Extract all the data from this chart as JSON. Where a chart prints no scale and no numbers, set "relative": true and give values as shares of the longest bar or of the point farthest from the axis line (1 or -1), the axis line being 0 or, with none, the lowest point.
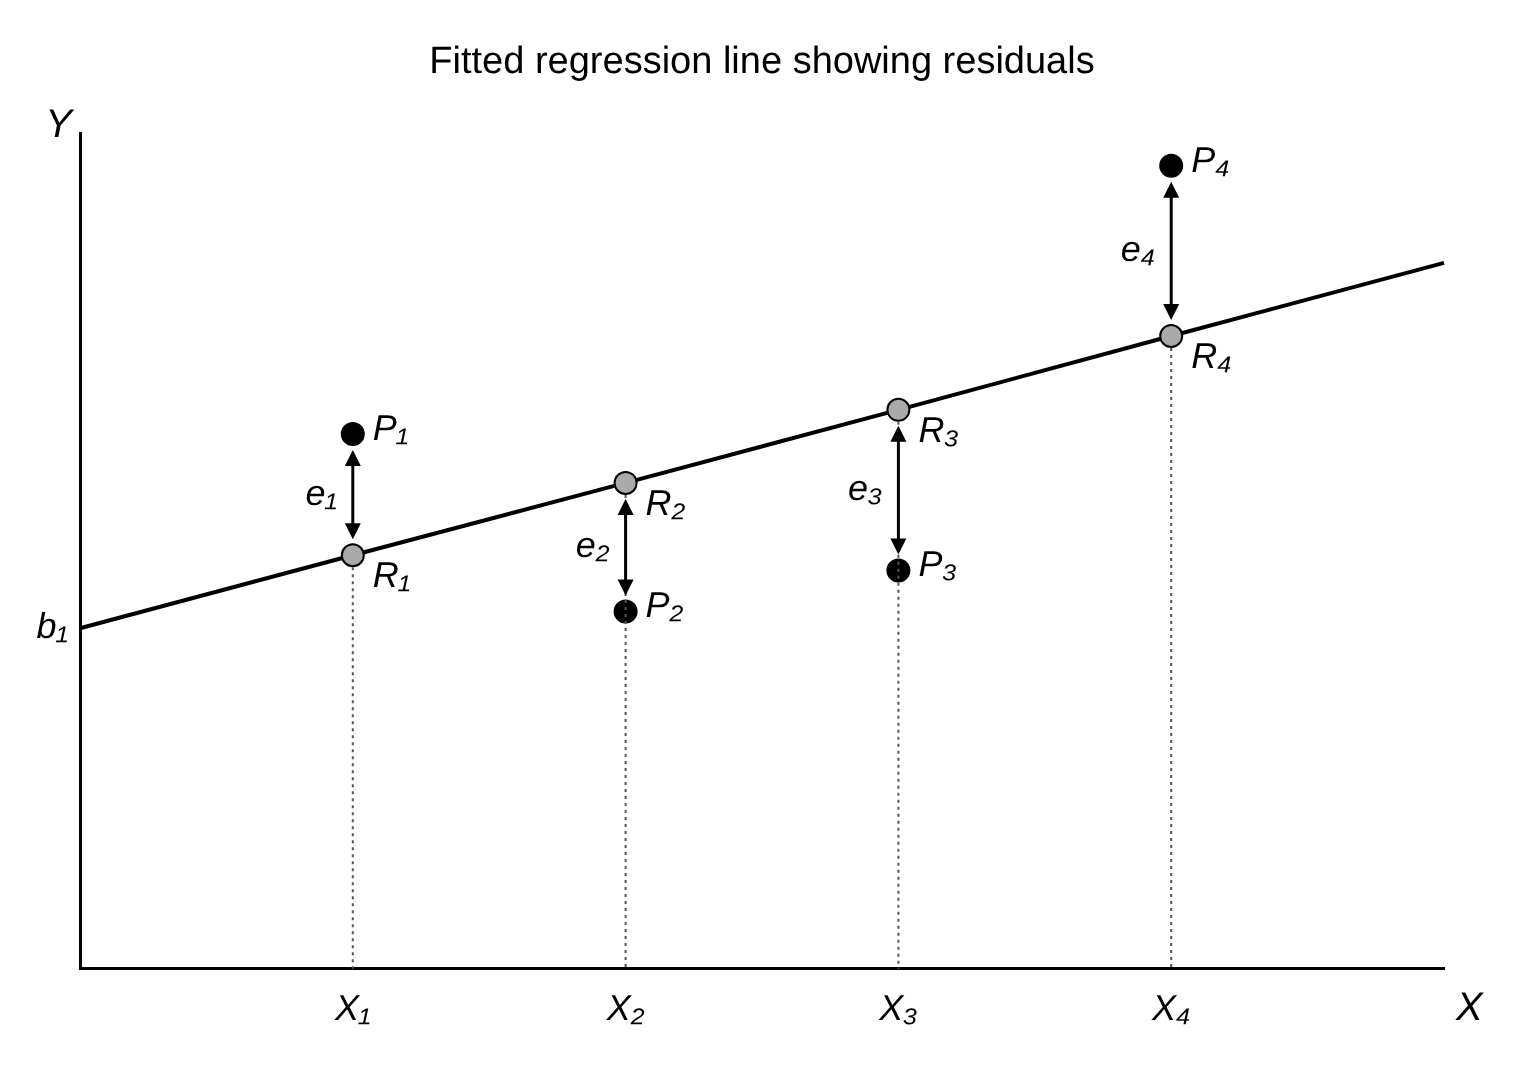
{
  "chart_data": {
    "type": "scatter",
    "title": "Fitted regression line showing residuals",
    "xlabel": "X",
    "ylabel": "Y",
    "relative": true,
    "categories": [
      null,
      "X₁",
      "X₂",
      "X₃",
      "X₄",
      null
    ],
    "series": [
      {
        "type": "line",
        "color": "#000000",
        "marker": "none",
        "values": [
          0.424,
          0.515,
          0.605,
          0.696,
          0.788,
          0.879
        ]
      },
      {
        "color": "#aaaaaa",
        "values": [
          null,
          0.515,
          0.605,
          0.696,
          0.788,
          null
        ]
      },
      {
        "color": "#000000",
        "values": [
          null,
          0.666,
          0.445,
          0.496,
          1,
          null
        ]
      }
    ],
    "marker": "circle",
    "grid": "x",
    "legend": false,
    "annotations": [
      "b₁",
      {
        "text": "P₁",
        "x": "X₁",
        "y": 0.666
      },
      {
        "text": "P₂",
        "x": "X₂",
        "y": 0.445
      },
      {
        "text": "P₃",
        "x": "X₃",
        "y": 0.496
      },
      {
        "text": "P₄",
        "x": "X₄",
        "y": 1
      },
      {
        "text": "R₁",
        "x": "X₁",
        "y": 0.515
      },
      {
        "text": "R₂",
        "x": "X₂",
        "y": 0.605
      },
      {
        "text": "R₃",
        "x": "X₃",
        "y": 0.696
      },
      {
        "text": "R₄",
        "x": "X₄",
        "y": 0.788
      },
      "e₁",
      "e₂",
      "e₃",
      "e₄"
    ]
  }
}
